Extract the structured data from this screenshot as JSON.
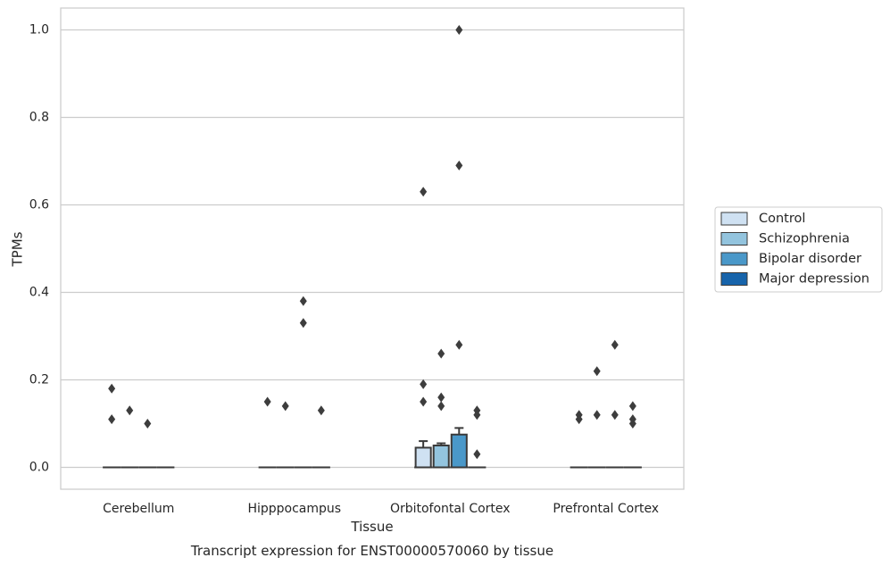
{
  "chart_data": {
    "type": "box",
    "xlabel": "Tissue",
    "ylabel": "TPMs",
    "caption": "Transcript expression for ENST00000570060 by tissue",
    "categories": [
      "Cerebellum",
      "Hipppocampus",
      "Orbitofontal Cortex",
      "Prefrontal Cortex"
    ],
    "ylim": [
      -0.05,
      1.05
    ],
    "yticks": [
      0.0,
      0.2,
      0.4,
      0.6,
      0.8,
      1.0
    ],
    "ytick_labels": [
      "0.0",
      "0.2",
      "0.4",
      "0.6",
      "0.8",
      "1.0"
    ],
    "grid": true,
    "legend_position": "right",
    "series": [
      {
        "name": "Control",
        "color": "#cfe1f2",
        "boxes": [
          {
            "q1": 0,
            "median": 0,
            "q3": 0,
            "whisker_low": 0,
            "whisker_high": 0,
            "outliers": [
              0.18,
              0.11
            ]
          },
          {
            "q1": 0,
            "median": 0,
            "q3": 0,
            "whisker_low": 0,
            "whisker_high": 0,
            "outliers": [
              0.15
            ]
          },
          {
            "q1": 0,
            "median": 0,
            "q3": 0.045,
            "whisker_low": 0,
            "whisker_high": 0.06,
            "outliers": [
              0.63,
              0.19,
              0.15
            ]
          },
          {
            "q1": 0,
            "median": 0,
            "q3": 0,
            "whisker_low": 0,
            "whisker_high": 0,
            "outliers": [
              0.12,
              0.11
            ]
          }
        ]
      },
      {
        "name": "Schizophrenia",
        "color": "#93c4de",
        "boxes": [
          {
            "q1": 0,
            "median": 0,
            "q3": 0,
            "whisker_low": 0,
            "whisker_high": 0,
            "outliers": [
              0.13
            ]
          },
          {
            "q1": 0,
            "median": 0,
            "q3": 0,
            "whisker_low": 0,
            "whisker_high": 0,
            "outliers": [
              0.14
            ]
          },
          {
            "q1": 0,
            "median": 0,
            "q3": 0.05,
            "whisker_low": 0,
            "whisker_high": 0.055,
            "outliers": [
              0.26,
              0.16,
              0.14
            ]
          },
          {
            "q1": 0,
            "median": 0,
            "q3": 0,
            "whisker_low": 0,
            "whisker_high": 0,
            "outliers": [
              0.22,
              0.12
            ]
          }
        ]
      },
      {
        "name": "Bipolar disorder",
        "color": "#4a98c9",
        "boxes": [
          {
            "q1": 0,
            "median": 0,
            "q3": 0,
            "whisker_low": 0,
            "whisker_high": 0,
            "outliers": [
              0.1
            ]
          },
          {
            "q1": 0,
            "median": 0,
            "q3": 0,
            "whisker_low": 0,
            "whisker_high": 0,
            "outliers": [
              0.38,
              0.33
            ]
          },
          {
            "q1": 0,
            "median": 0,
            "q3": 0.075,
            "whisker_low": 0,
            "whisker_high": 0.09,
            "outliers": [
              1.0,
              0.69,
              0.28
            ]
          },
          {
            "q1": 0,
            "median": 0,
            "q3": 0,
            "whisker_low": 0,
            "whisker_high": 0,
            "outliers": [
              0.28,
              0.12
            ]
          }
        ]
      },
      {
        "name": "Major depression",
        "color": "#1764ab",
        "boxes": [
          {
            "q1": 0,
            "median": 0,
            "q3": 0,
            "whisker_low": 0,
            "whisker_high": 0,
            "outliers": []
          },
          {
            "q1": 0,
            "median": 0,
            "q3": 0,
            "whisker_low": 0,
            "whisker_high": 0,
            "outliers": [
              0.13
            ]
          },
          {
            "q1": 0,
            "median": 0,
            "q3": 0,
            "whisker_low": 0,
            "whisker_high": 0,
            "outliers": [
              0.13,
              0.12,
              0.03
            ]
          },
          {
            "q1": 0,
            "median": 0,
            "q3": 0,
            "whisker_low": 0,
            "whisker_high": 0,
            "outliers": [
              0.14,
              0.11,
              0.1
            ]
          }
        ]
      }
    ]
  }
}
